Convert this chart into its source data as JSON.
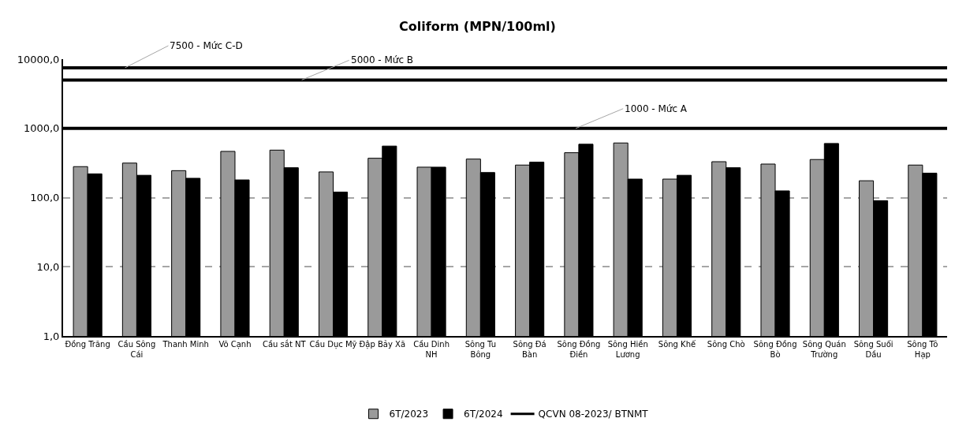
{
  "chart_data": {
    "type": "bar",
    "title": "Coliform (MPN/100ml)",
    "categories": [
      "Đồng Trăng",
      "Cầu Sông Cái",
      "Thanh Minh",
      "Võ Cạnh",
      "Cầu sắt NT",
      "Cầu Dục Mỹ",
      "Đập Bảy Xã",
      "Cầu Dinh NH",
      "Sông Tu Bông",
      "Sông Đá Bàn",
      "Sông Đồng Điền",
      "Sông Hiền Lương",
      "Sông Khế",
      "Sông Chò",
      "Sông Đồng Bò",
      "Sông Quán Trường",
      "Sông Suối Dầu",
      "Sông Tô Hạp"
    ],
    "series": [
      {
        "name": "6T/2023",
        "color": "#9a9a9a",
        "values": [
          280,
          315,
          245,
          465,
          485,
          235,
          370,
          275,
          360,
          295,
          445,
          615,
          185,
          330,
          305,
          355,
          175,
          295
        ]
      },
      {
        "name": "6T/2024",
        "color": "#000000",
        "values": [
          220,
          210,
          190,
          180,
          270,
          120,
          555,
          275,
          230,
          325,
          590,
          185,
          210,
          270,
          125,
          605,
          90,
          225
        ]
      },
      {
        "name": "QCVN 08-2023/ BTNMT",
        "type": "line",
        "color": "#000000",
        "values": [
          null,
          null,
          null,
          null,
          null,
          null,
          null,
          null,
          null,
          null,
          null,
          null,
          null,
          null,
          null,
          null,
          null,
          null
        ]
      }
    ],
    "log": "y",
    "ylim": [
      1,
      10000
    ],
    "yticks": [
      {
        "value": 1,
        "label": "1,0"
      },
      {
        "value": 10,
        "label": "10,0"
      },
      {
        "value": 100,
        "label": "100,0"
      },
      {
        "value": 1000,
        "label": "1000,0"
      },
      {
        "value": 10000,
        "label": "10000,0"
      }
    ],
    "grid": "y",
    "legend": "bottom",
    "ref_lines": [
      {
        "axis": "y",
        "value": 7500,
        "label": "7500 - Mức C-D",
        "color": "#000000",
        "line_style": "solid"
      },
      {
        "axis": "y",
        "value": 5000,
        "label": "5000 - Mức B",
        "color": "#000000",
        "line_style": "solid"
      },
      {
        "axis": "y",
        "value": 1000,
        "label": "1000 - Mức A",
        "color": "#000000",
        "line_style": "solid"
      }
    ]
  }
}
